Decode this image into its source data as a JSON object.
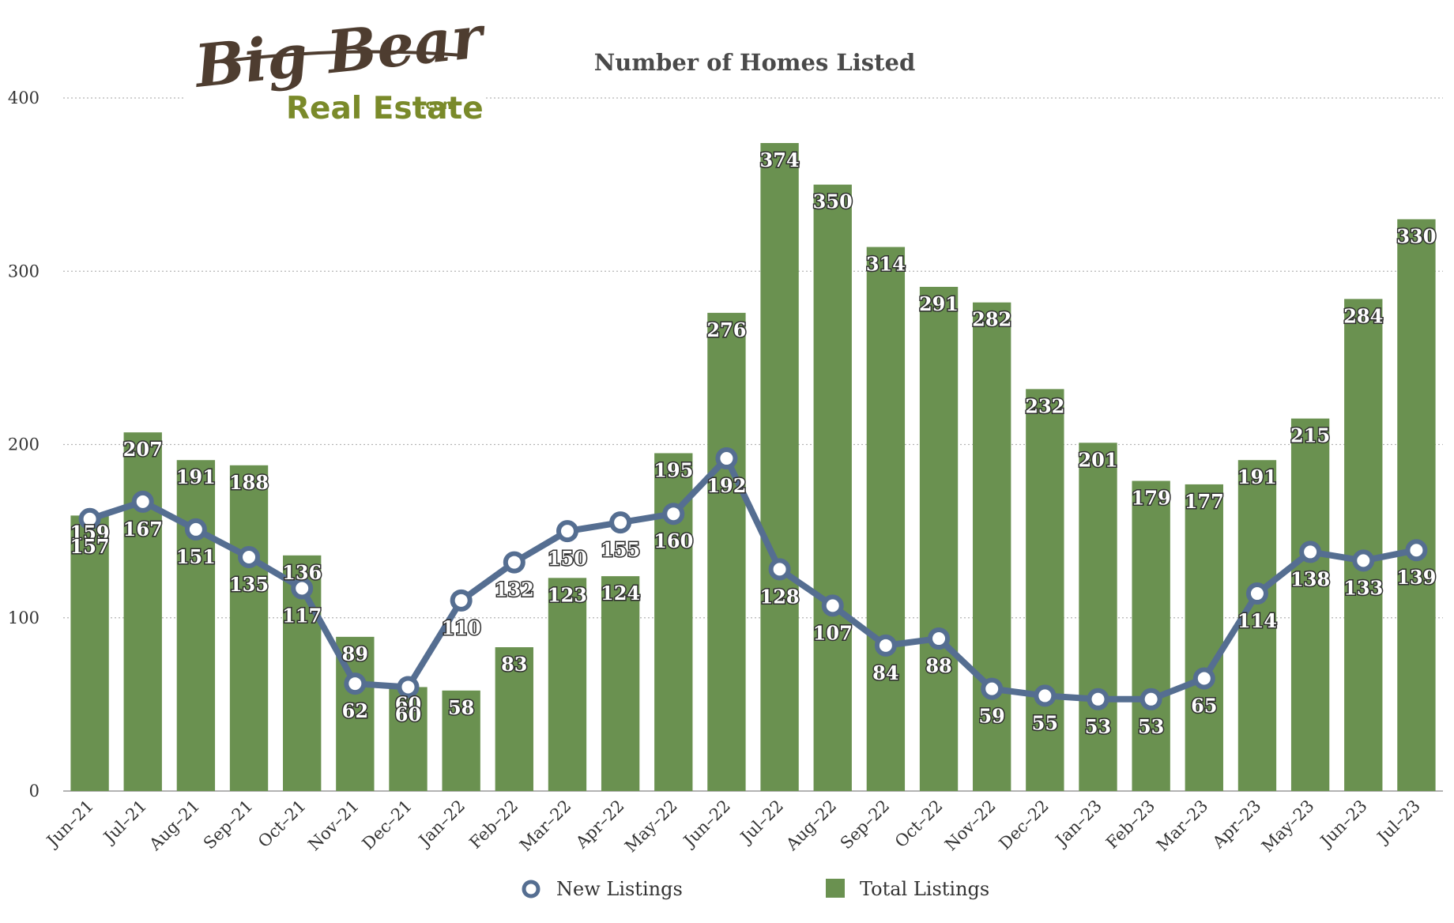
{
  "logo": {
    "top_text": "Big Bear",
    "bottom_text": "Real Estate",
    "suffix": ".com"
  },
  "chart_data": {
    "type": "bar",
    "title": "Number of Homes Listed",
    "xlabel": "",
    "ylabel": "",
    "ylim": [
      0,
      400
    ],
    "yticks": [
      0,
      100,
      200,
      300,
      400
    ],
    "grid": true,
    "legend_position": "bottom",
    "categories": [
      "Jun–21",
      "Jul–21",
      "Aug–21",
      "Sep–21",
      "Oct–21",
      "Nov–21",
      "Dec–21",
      "Jan–22",
      "Feb–22",
      "Mar–22",
      "Apr–22",
      "May–22",
      "Jun–22",
      "Jul–22",
      "Aug–22",
      "Sep–22",
      "Oct–22",
      "Nov–22",
      "Dec–22",
      "Jan–23",
      "Feb–23",
      "Mar–23",
      "Apr–23",
      "May–23",
      "Jun–23",
      "Jul–23"
    ],
    "series": [
      {
        "name": "Total Listings",
        "type": "bar",
        "color": "#6a9150",
        "values": [
          159,
          207,
          191,
          188,
          136,
          89,
          60,
          58,
          83,
          123,
          124,
          195,
          276,
          374,
          350,
          314,
          291,
          282,
          232,
          201,
          179,
          177,
          191,
          215,
          284,
          330
        ]
      },
      {
        "name": "New Listings",
        "type": "line",
        "color": "#556e91",
        "values": [
          157,
          167,
          151,
          135,
          117,
          62,
          60,
          110,
          132,
          150,
          155,
          160,
          192,
          128,
          107,
          84,
          88,
          59,
          55,
          53,
          53,
          65,
          114,
          138,
          133,
          139
        ]
      }
    ]
  }
}
